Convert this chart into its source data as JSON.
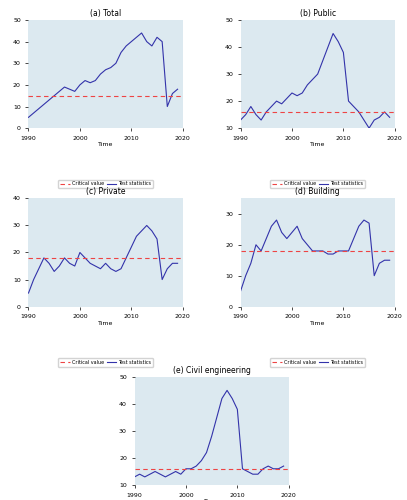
{
  "title_a": "(a) Total",
  "title_b": "(b) Public",
  "title_c": "(c) Private",
  "title_d": "(d) Building",
  "title_e": "(e) Civil engineering",
  "xlabel": "Time",
  "critical_value_label": "Critical value",
  "test_stat_label": "Test statistics",
  "line_color": "#3333aa",
  "crit_color": "#ee4444",
  "bg_color": "#dce9f0",
  "x_ticks": [
    1990,
    2000,
    2010,
    2020
  ],
  "xlim": [
    1990,
    2020
  ],
  "total_x": [
    1990,
    1991,
    1992,
    1993,
    1994,
    1995,
    1996,
    1997,
    1998,
    1999,
    2000,
    2001,
    2002,
    2003,
    2004,
    2005,
    2006,
    2007,
    2008,
    2009,
    2010,
    2011,
    2012,
    2013,
    2014,
    2015,
    2016,
    2017,
    2018,
    2019
  ],
  "total_y": [
    5,
    7,
    9,
    11,
    13,
    15,
    17,
    19,
    18,
    17,
    20,
    22,
    21,
    22,
    25,
    27,
    28,
    30,
    35,
    38,
    40,
    42,
    44,
    40,
    38,
    42,
    40,
    10,
    16,
    18
  ],
  "total_crit": 15,
  "total_ylim": [
    0,
    50
  ],
  "total_yticks": [
    0,
    10,
    20,
    30,
    40,
    50
  ],
  "public_x": [
    1990,
    1991,
    1992,
    1993,
    1994,
    1995,
    1996,
    1997,
    1998,
    1999,
    2000,
    2001,
    2002,
    2003,
    2004,
    2005,
    2006,
    2007,
    2008,
    2009,
    2010,
    2011,
    2012,
    2013,
    2014,
    2015,
    2016,
    2017,
    2018,
    2019
  ],
  "public_y": [
    13,
    15,
    18,
    15,
    13,
    16,
    18,
    20,
    19,
    21,
    23,
    22,
    23,
    26,
    28,
    30,
    35,
    40,
    45,
    42,
    38,
    20,
    18,
    16,
    13,
    10,
    13,
    14,
    16,
    14
  ],
  "public_crit": 16,
  "public_ylim": [
    10,
    50
  ],
  "public_yticks": [
    10,
    20,
    30,
    40,
    50
  ],
  "private_x": [
    1990,
    1991,
    1992,
    1993,
    1994,
    1995,
    1996,
    1997,
    1998,
    1999,
    2000,
    2001,
    2002,
    2003,
    2004,
    2005,
    2006,
    2007,
    2008,
    2009,
    2010,
    2011,
    2012,
    2013,
    2014,
    2015,
    2016,
    2017,
    2018,
    2019
  ],
  "private_y": [
    5,
    10,
    14,
    18,
    16,
    13,
    15,
    18,
    16,
    15,
    20,
    18,
    16,
    15,
    14,
    16,
    14,
    13,
    14,
    18,
    22,
    26,
    28,
    30,
    28,
    25,
    10,
    14,
    16,
    16
  ],
  "private_crit": 18,
  "private_ylim": [
    0,
    40
  ],
  "private_yticks": [
    0,
    10,
    20,
    30,
    40
  ],
  "building_x": [
    1990,
    1991,
    1992,
    1993,
    1994,
    1995,
    1996,
    1997,
    1998,
    1999,
    2000,
    2001,
    2002,
    2003,
    2004,
    2005,
    2006,
    2007,
    2008,
    2009,
    2010,
    2011,
    2012,
    2013,
    2014,
    2015,
    2016,
    2017,
    2018,
    2019
  ],
  "building_y": [
    5,
    10,
    14,
    20,
    18,
    22,
    26,
    28,
    24,
    22,
    24,
    26,
    22,
    20,
    18,
    18,
    18,
    17,
    17,
    18,
    18,
    18,
    22,
    26,
    28,
    27,
    10,
    14,
    15,
    15
  ],
  "building_crit": 18,
  "building_ylim": [
    0,
    35
  ],
  "building_yticks": [
    0,
    10,
    20,
    30
  ],
  "civil_x": [
    1990,
    1991,
    1992,
    1993,
    1994,
    1995,
    1996,
    1997,
    1998,
    1999,
    2000,
    2001,
    2002,
    2003,
    2004,
    2005,
    2006,
    2007,
    2008,
    2009,
    2010,
    2011,
    2012,
    2013,
    2014,
    2015,
    2016,
    2017,
    2018,
    2019
  ],
  "civil_y": [
    13,
    14,
    13,
    14,
    15,
    14,
    13,
    14,
    15,
    14,
    16,
    16,
    17,
    19,
    22,
    28,
    35,
    42,
    45,
    42,
    38,
    16,
    15,
    14,
    14,
    16,
    17,
    16,
    16,
    17
  ],
  "civil_crit": 16,
  "civil_ylim": [
    10,
    50
  ],
  "civil_yticks": [
    10,
    20,
    30,
    40,
    50
  ]
}
